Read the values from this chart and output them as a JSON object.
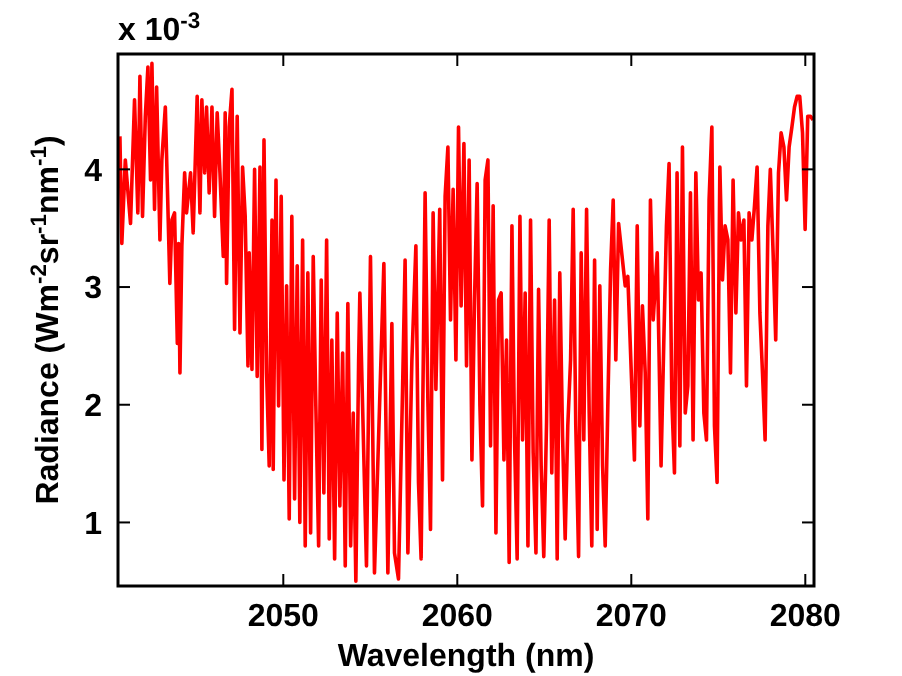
{
  "chart_data": {
    "type": "line",
    "xlabel": "Wavelength (nm)",
    "ylabel": "Radiance (Wm$^{-2}$sr$^{-1}$nm$^{-1}$)",
    "annotations": [
      "x 10$^{-3}$"
    ],
    "xlim": [
      2040.5,
      2080.5
    ],
    "xticks": [
      2050,
      2060,
      2070,
      2080
    ],
    "ylim": [
      0.46,
      4.98
    ],
    "yticks": [
      1,
      2,
      3,
      4
    ],
    "grid": false,
    "marker": "none",
    "line_style": "solid",
    "series": [
      {
        "color": "#ff0000",
        "x": [
          2040.61,
          2040.72,
          2040.92,
          2041.22,
          2041.45,
          2041.64,
          2041.76,
          2041.91,
          2042.07,
          2042.22,
          2042.37,
          2042.45,
          2042.6,
          2042.72,
          2042.91,
          2043.02,
          2043.22,
          2043.48,
          2043.6,
          2043.75,
          2043.91,
          2043.98,
          2044.06,
          2044.17,
          2044.33,
          2044.44,
          2044.67,
          2044.82,
          2045.05,
          2045.21,
          2045.32,
          2045.48,
          2045.59,
          2045.74,
          2045.9,
          2046.05,
          2046.2,
          2046.36,
          2046.55,
          2046.66,
          2046.74,
          2046.89,
          2047.05,
          2047.2,
          2047.35,
          2047.51,
          2047.66,
          2047.81,
          2047.97,
          2048.04,
          2048.2,
          2048.35,
          2048.5,
          2048.66,
          2048.77,
          2048.89,
          2049.04,
          2049.19,
          2049.35,
          2049.42,
          2049.58,
          2049.73,
          2049.88,
          2050.04,
          2050.19,
          2050.34,
          2050.49,
          2050.65,
          2050.8,
          2050.95,
          2051.11,
          2051.26,
          2051.41,
          2051.57,
          2051.72,
          2051.87,
          2052.03,
          2052.18,
          2052.33,
          2052.49,
          2052.64,
          2052.79,
          2052.95,
          2053.1,
          2053.25,
          2053.41,
          2053.56,
          2053.71,
          2053.87,
          2054.02,
          2054.17,
          2054.33,
          2054.4,
          2054.78,
          2055.01,
          2055.24,
          2055.78,
          2056.01,
          2056.24,
          2056.39,
          2056.62,
          2056.85,
          2057.0,
          2057.16,
          2057.39,
          2057.62,
          2057.77,
          2057.92,
          2058.15,
          2058.31,
          2058.46,
          2058.61,
          2058.77,
          2058.99,
          2059.15,
          2059.3,
          2059.46,
          2059.61,
          2059.76,
          2059.92,
          2060.07,
          2060.22,
          2060.38,
          2060.53,
          2060.68,
          2060.84,
          2060.99,
          2061.14,
          2061.3,
          2061.45,
          2061.6,
          2061.76,
          2061.91,
          2062.06,
          2062.22,
          2062.37,
          2062.52,
          2062.68,
          2062.83,
          2062.98,
          2063.14,
          2063.29,
          2063.44,
          2063.6,
          2063.75,
          2063.9,
          2064.06,
          2064.21,
          2064.36,
          2064.52,
          2064.67,
          2064.82,
          2064.97,
          2065.13,
          2065.28,
          2065.43,
          2065.59,
          2065.74,
          2065.89,
          2066.05,
          2066.2,
          2066.35,
          2066.51,
          2066.66,
          2066.81,
          2066.97,
          2067.12,
          2067.27,
          2067.43,
          2067.58,
          2067.73,
          2067.89,
          2068.04,
          2068.19,
          2068.35,
          2068.5,
          2068.65,
          2068.81,
          2068.96,
          2069.11,
          2069.27,
          2069.65,
          2069.8,
          2070.18,
          2070.34,
          2070.49,
          2070.64,
          2070.8,
          2070.95,
          2071.1,
          2071.26,
          2071.49,
          2071.71,
          2071.87,
          2072.02,
          2072.17,
          2072.33,
          2072.48,
          2072.63,
          2072.79,
          2072.94,
          2073.1,
          2073.25,
          2073.4,
          2073.55,
          2073.71,
          2073.86,
          2074.01,
          2074.17,
          2074.32,
          2074.47,
          2074.63,
          2074.78,
          2074.93,
          2075.09,
          2075.24,
          2075.39,
          2075.55,
          2075.7,
          2075.85,
          2076.01,
          2076.16,
          2076.31,
          2076.47,
          2076.62,
          2076.77,
          2076.93,
          2077.08,
          2077.23,
          2077.39,
          2077.54,
          2077.69,
          2077.85,
          2077.99,
          2078.15,
          2078.3,
          2078.46,
          2078.61,
          2078.77,
          2078.92,
          2079.07,
          2079.23,
          2079.38,
          2079.53,
          2079.68,
          2079.84,
          2079.99,
          2080.14,
          2080.3,
          2080.45
        ],
        "values": [
          4.28,
          3.37,
          4.08,
          3.54,
          4.59,
          3.63,
          4.79,
          3.6,
          4.45,
          4.87,
          3.91,
          4.9,
          3.66,
          4.7,
          3.4,
          4.08,
          4.53,
          3.03,
          3.57,
          3.63,
          2.52,
          3.37,
          2.27,
          3.35,
          3.97,
          3.63,
          3.97,
          3.46,
          4.62,
          3.63,
          4.59,
          3.97,
          4.53,
          3.8,
          4.53,
          3.6,
          4.48,
          3.97,
          3.26,
          4.48,
          3.03,
          4.36,
          4.68,
          2.64,
          4.45,
          2.61,
          4.02,
          3.6,
          2.33,
          3.29,
          2.3,
          4.0,
          2.24,
          4.02,
          1.62,
          4.25,
          2.27,
          1.48,
          3.57,
          1.45,
          3.91,
          1.99,
          3.77,
          1.36,
          3.01,
          1.03,
          3.6,
          1.2,
          3.18,
          1.0,
          3.4,
          0.8,
          3.12,
          0.91,
          3.26,
          1.99,
          0.8,
          3.06,
          1.25,
          3.4,
          0.86,
          2.55,
          0.69,
          2.78,
          1.14,
          2.44,
          0.63,
          2.86,
          0.8,
          1.93,
          0.5,
          2.38,
          2.95,
          0.63,
          3.26,
          0.57,
          3.2,
          0.57,
          2.69,
          0.74,
          0.52,
          2.1,
          3.23,
          0.74,
          2.38,
          3.35,
          1.34,
          0.69,
          3.8,
          2.02,
          0.94,
          3.63,
          2.13,
          3.66,
          1.36,
          3.77,
          4.19,
          2.72,
          3.83,
          2.38,
          4.36,
          2.84,
          4.22,
          2.33,
          4.08,
          1.53,
          2.89,
          3.88,
          1.99,
          1.14,
          3.91,
          4.08,
          1.65,
          3.69,
          0.91,
          2.89,
          2.95,
          1.53,
          2.55,
          0.66,
          3.52,
          1.7,
          0.69,
          3.6,
          1.7,
          2.95,
          0.8,
          3.57,
          1.59,
          0.74,
          2.98,
          1.48,
          0.71,
          1.85,
          3.57,
          1.42,
          2.89,
          0.69,
          3.12,
          1.73,
          0.86,
          1.82,
          2.38,
          3.66,
          1.82,
          0.71,
          3.29,
          1.7,
          3.66,
          1.93,
          0.8,
          3.23,
          0.94,
          3.01,
          1.48,
          0.8,
          1.99,
          3.15,
          3.74,
          2.38,
          3.54,
          3.01,
          3.09,
          1.53,
          3.52,
          1.82,
          2.84,
          2.27,
          1.03,
          3.74,
          2.72,
          3.29,
          1.48,
          2.55,
          3.52,
          4.05,
          2.04,
          1.42,
          3.97,
          1.65,
          4.19,
          1.93,
          2.16,
          3.8,
          1.7,
          3.97,
          2.89,
          3.12,
          1.93,
          1.7,
          3.74,
          4.36,
          1.82,
          1.34,
          4.02,
          3.06,
          3.52,
          3.4,
          2.27,
          3.91,
          2.78,
          3.63,
          3.4,
          3.57,
          2.16,
          3.63,
          3.4,
          3.69,
          4.02,
          2.78,
          2.27,
          1.7,
          3.52,
          4.0,
          3.29,
          2.55,
          3.97,
          4.31,
          4.19,
          3.74,
          4.19,
          4.36,
          4.53,
          4.62,
          4.62,
          4.31,
          3.49,
          4.45,
          4.45,
          4.42
        ]
      }
    ]
  }
}
